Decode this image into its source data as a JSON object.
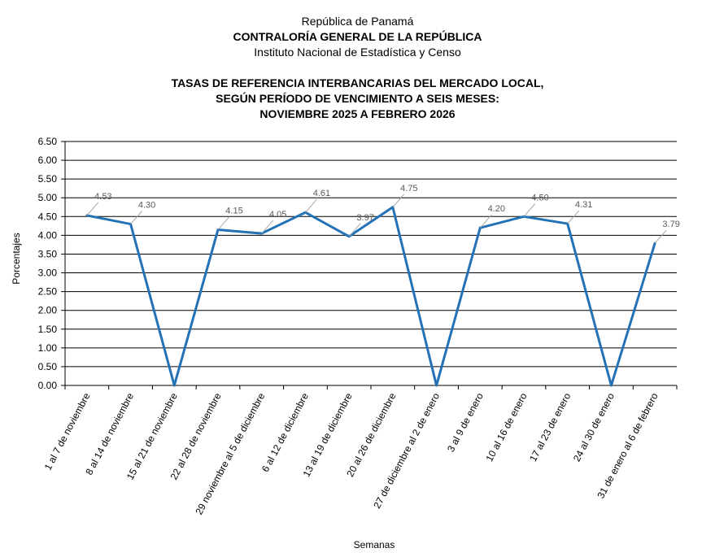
{
  "header": {
    "line1": "República de Panamá",
    "line2": "CONTRALORÍA GENERAL DE LA REPÚBLICA",
    "line3": "Instituto  Nacional de Estadística  y  Censo"
  },
  "chart_data": {
    "type": "line",
    "title": [
      "TASAS DE REFERENCIA INTERBANCARIAS DEL MERCADO LOCAL,",
      "SEGÚN PERÍODO DE VENCIMIENTO A SEIS MESES:",
      "NOVIEMBRE 2025 A FEBRERO 2026"
    ],
    "xlabel": "Semanas",
    "ylabel": "Porcentajes",
    "ylim": [
      0,
      6.5
    ],
    "ytick_step": 0.5,
    "grid": true,
    "line_color": "#2372B5",
    "categories": [
      "1 al 7 de noviembre",
      "8 al 14 de noviembre",
      "15 al 21 de noviembre",
      "22 al 28 de noviembre",
      "29 noviembre al 5 de diciembre",
      "6 al 12 de diciembre",
      "13 al 19 de diciembre",
      "20 al 26 de diciembre",
      "27 de diciembre al 2 de enero",
      "3 al 9 de enero",
      "10 al 16 de enero",
      "17 al 23 de enero",
      "24 al 30 de enero",
      "31 de enero al 6 de febrero"
    ],
    "values": [
      4.53,
      4.3,
      0,
      4.15,
      4.05,
      4.61,
      3.97,
      4.75,
      0,
      4.2,
      4.5,
      4.31,
      0,
      3.79
    ],
    "data_labels": [
      "4.53",
      "4.30",
      "",
      "4.15",
      "4.05",
      "4.61",
      "3.97",
      "4.75",
      "",
      "4.20",
      "4.50",
      "4.31",
      "",
      "3.79"
    ]
  }
}
